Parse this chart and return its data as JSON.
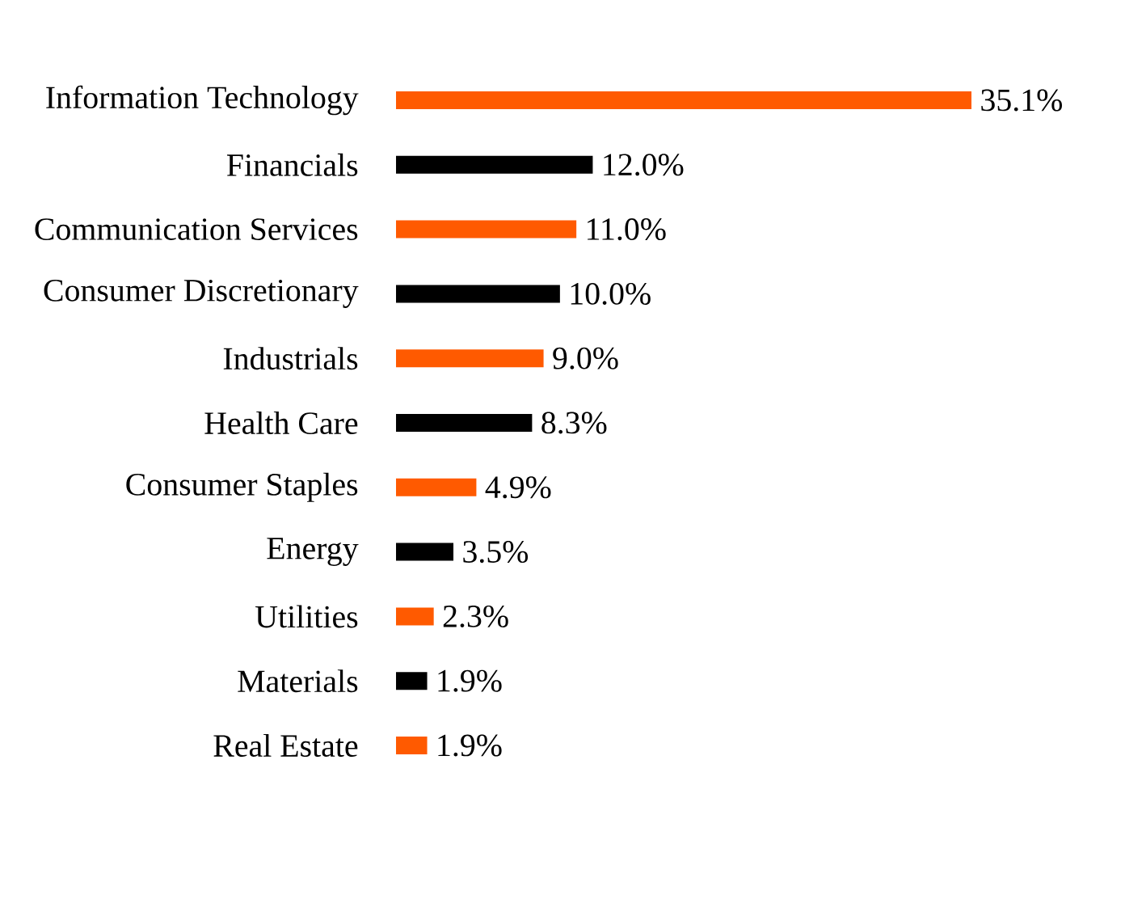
{
  "chart_data": {
    "type": "bar",
    "orientation": "horizontal",
    "categories": [
      "Information Technology",
      "Financials",
      "Communication Services",
      "Consumer Discretionary",
      "Industrials",
      "Health Care",
      "Consumer Staples",
      "Energy",
      "Utilities",
      "Materials",
      "Real Estate"
    ],
    "values": [
      35.1,
      12.0,
      11.0,
      10.0,
      9.0,
      8.3,
      4.9,
      3.5,
      2.3,
      1.9,
      1.9
    ],
    "colors": [
      "#ff5a00",
      "#000000",
      "#ff5a00",
      "#000000",
      "#ff5a00",
      "#000000",
      "#ff5a00",
      "#000000",
      "#ff5a00",
      "#000000",
      "#ff5a00"
    ],
    "value_labels": [
      "35.1%",
      "12.0%",
      "11.0%",
      "10.0%",
      "9.0%",
      "8.3%",
      "4.9%",
      "3.5%",
      "2.3%",
      "1.9%",
      "1.9%"
    ]
  }
}
